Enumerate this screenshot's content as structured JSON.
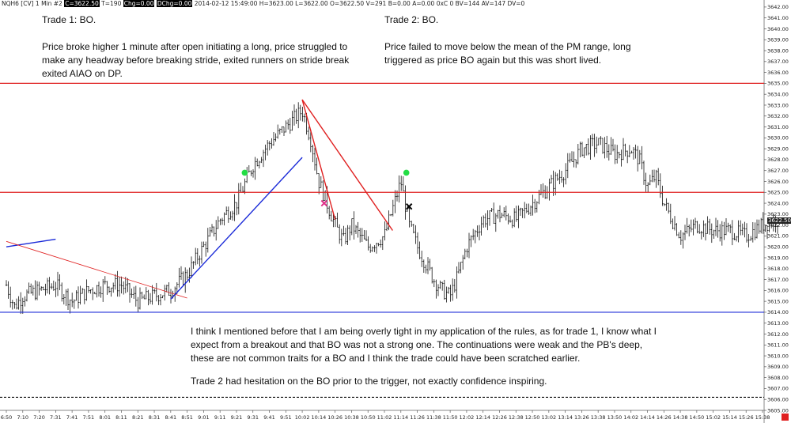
{
  "header": {
    "symbol": "NQH6 [CV]  1 Min  #2",
    "close": "C=3622.50",
    "ticks": "T=190",
    "chg": "Chg=0.00",
    "dchg": "DChg=0.00",
    "rest": "2014-02-12 15:49:00 H=3623.00 L=3622.00 O=3622.50 V=291 B=0.00 A=0.00 0xC 0 BV=144 AV=147 DV=0"
  },
  "notes": {
    "trade1_title": "Trade 1:  BO.",
    "trade1_body": "Price broke higher 1 minute after open initiating a long, price struggled to make any headway before breaking stride, exited runners on stride break exited AIAO on DP.",
    "trade2_title": "Trade 2: BO.",
    "trade2_body": "Price failed to move below the mean of the PM range, long triggered as price BO again but this was short lived.",
    "comment1": "I think I mentioned before that I am being overly tight in my application of the rules, as for trade 1, I know what I expect from a breakout and that BO was not a strong one.  The continuations were weak and the PB's deep, these are not common traits for a BO and I think the trade could have been scratched earlier.",
    "comment2": "Trade 2 had hesitation on the BO prior to the trigger, not exactly confidence inspiring."
  },
  "price_tag": "3622.50",
  "colors": {
    "red": "#e02020",
    "blue": "#1a2ad8",
    "green": "#22dd44",
    "magenta": "#e0308a",
    "black": "#000000",
    "bar": "#111111"
  },
  "chart_data": {
    "type": "line",
    "ylim": [
      3605,
      3642.5
    ],
    "y_ticks": [
      3605,
      3606,
      3607,
      3608,
      3609,
      3610,
      3611,
      3612,
      3613,
      3614,
      3615,
      3616,
      3617,
      3618,
      3619,
      3620,
      3621,
      3622,
      3623,
      3624,
      3625,
      3626,
      3627,
      3628,
      3629,
      3630,
      3631,
      3632,
      3633,
      3634,
      3635,
      3636,
      3637,
      3638,
      3639,
      3640,
      3641,
      3642
    ],
    "y_tick_labels": [
      "3605.00",
      "3606.00",
      "3607.00",
      "3608.00",
      "3609.00",
      "3610.00",
      "3611.00",
      "3612.00",
      "3613.00",
      "3614.00",
      "3615.00",
      "3616.00",
      "3617.00",
      "3618.00",
      "3619.00",
      "3620.00",
      "3621.00",
      "3622.00",
      "3623.00",
      "3624.00",
      "3625.00",
      "3626.00",
      "3627.00",
      "3628.00",
      "3629.00",
      "3630.00",
      "3631.00",
      "3632.00",
      "3633.00",
      "3634.00",
      "3635.00",
      "3636.00",
      "3637.00",
      "3638.00",
      "3639.00",
      "3640.00",
      "3641.00",
      "3642.00"
    ],
    "x_ticks": [
      "6:50",
      "7:10",
      "7:20",
      "7:31",
      "7:41",
      "7:51",
      "8:01",
      "8:11",
      "8:21",
      "8:31",
      "8:41",
      "8:51",
      "9:01",
      "9:11",
      "9:21",
      "9:31",
      "9:41",
      "9:51",
      "10:02",
      "10:14",
      "10:26",
      "10:38",
      "10:50",
      "11:02",
      "11:14",
      "11:26",
      "11:38",
      "11:50",
      "12:02",
      "12:14",
      "12:26",
      "12:38",
      "12:50",
      "13:02",
      "13:14",
      "13:26",
      "13:38",
      "13:50",
      "14:02",
      "14:14",
      "14:26",
      "14:38",
      "14:50",
      "15:02",
      "15:14",
      "15:26",
      "15:38"
    ],
    "series": [
      {
        "x": [
          "6:50",
          "7:00",
          "7:10",
          "7:20",
          "7:31",
          "7:41",
          "7:51",
          "8:01",
          "8:11",
          "8:21",
          "8:31",
          "8:41",
          "8:51",
          "9:01",
          "9:11",
          "9:21",
          "9:31",
          "9:41",
          "9:51",
          "10:02",
          "10:08",
          "10:14",
          "10:20",
          "10:26",
          "10:32",
          "10:38",
          "10:44",
          "10:50",
          "10:56",
          "11:02",
          "11:08",
          "11:14",
          "11:20",
          "11:26",
          "11:32",
          "11:38",
          "11:44",
          "11:50",
          "11:56",
          "12:02",
          "12:14",
          "12:26",
          "12:38",
          "12:50",
          "13:02",
          "13:14",
          "13:26",
          "13:38",
          "13:50",
          "14:02",
          "14:08",
          "14:14",
          "14:20",
          "14:26",
          "14:38",
          "14:50",
          "15:02",
          "15:14",
          "15:26",
          "15:38",
          "15:49"
        ],
        "values": [
          3616.5,
          3614.5,
          3615.5,
          3616,
          3616.5,
          3615,
          3616,
          3616.5,
          3616.5,
          3615,
          3615.5,
          3616,
          3617.5,
          3620,
          3622.5,
          3624,
          3627.5,
          3629.5,
          3631,
          3632.5,
          3630,
          3626,
          3624,
          3622,
          3620.5,
          3622,
          3621,
          3620,
          3620.5,
          3621,
          3623.5,
          3626,
          3622,
          3620,
          3618.5,
          3617,
          3616,
          3615.5,
          3617.5,
          3620,
          3622.5,
          3623,
          3622.5,
          3624,
          3625.5,
          3627,
          3629,
          3629.5,
          3628.5,
          3629,
          3628,
          3625.5,
          3626.5,
          3624,
          3621,
          3622,
          3621.5,
          3621.5,
          3621,
          3622,
          3622.5
        ]
      }
    ],
    "horizontal_levels": [
      {
        "value": 3635,
        "color": "red"
      },
      {
        "value": 3625,
        "color": "red"
      },
      {
        "value": 3614,
        "color": "blue"
      },
      {
        "value": 3606.2,
        "color": "black",
        "dashed": true
      }
    ],
    "trend_lines": [
      {
        "x1": "6:50",
        "y1": 3620.0,
        "x2": "7:31",
        "y2": 3620.7,
        "color": "blue"
      },
      {
        "x1": "6:50",
        "y1": 3620.5,
        "x2": "8:51",
        "y2": 3615.3,
        "color": "red"
      },
      {
        "x1": "8:41",
        "y1": 3615.2,
        "x2": "10:02",
        "y2": 3628.2,
        "color": "blue"
      },
      {
        "x1": "10:02",
        "y1": 3633.5,
        "x2": "10:26",
        "y2": 3622.5,
        "color": "red"
      },
      {
        "x1": "10:02",
        "y1": 3633.5,
        "x2": "11:08",
        "y2": 3621.5,
        "color": "red"
      }
    ],
    "markers": [
      {
        "x": "9:26",
        "y": 3626.8,
        "shape": "dot",
        "color": "green"
      },
      {
        "x": "10:18",
        "y": 3624.0,
        "shape": "cross",
        "color": "magenta"
      },
      {
        "x": "11:18",
        "y": 3626.8,
        "shape": "dot",
        "color": "green"
      },
      {
        "x": "11:20",
        "y": 3623.7,
        "shape": "cross",
        "color": "black"
      }
    ]
  }
}
